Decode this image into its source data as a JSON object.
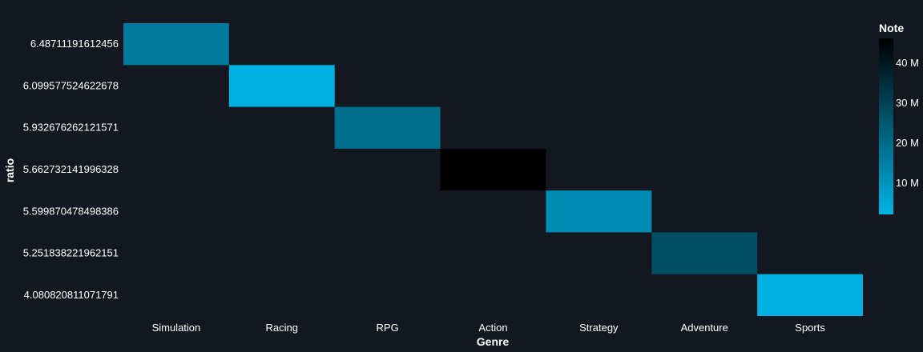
{
  "chart_data": {
    "type": "heatmap",
    "title": "",
    "xlabel": "Genre",
    "ylabel": "ratio",
    "x_categories": [
      "Simulation",
      "Racing",
      "RPG",
      "Action",
      "Strategy",
      "Adventure",
      "Sports"
    ],
    "y_categories": [
      "6.48711191612456",
      "6.099577524622678",
      "5.932676262121571",
      "5.662732141996328",
      "5.599870478498386",
      "5.251838221962151",
      "4.080820811071791"
    ],
    "cells": [
      {
        "x": "Simulation",
        "y": "6.48711191612456",
        "value": 16000000
      },
      {
        "x": "Racing",
        "y": "6.099577524622678",
        "value": 3000000
      },
      {
        "x": "RPG",
        "y": "5.932676262121571",
        "value": 19000000
      },
      {
        "x": "Action",
        "y": "5.662732141996328",
        "value": 46000000
      },
      {
        "x": "Strategy",
        "y": "5.599870478498386",
        "value": 12000000
      },
      {
        "x": "Adventure",
        "y": "5.251838221962151",
        "value": 27000000
      },
      {
        "x": "Sports",
        "y": "4.080820811071791",
        "value": 3000000
      }
    ],
    "colorbar": {
      "title": "Note",
      "range": [
        2000000,
        46000000
      ],
      "ticks": [
        10000000,
        20000000,
        30000000,
        40000000
      ],
      "tick_labels": [
        "10 M",
        "20 M",
        "30 M",
        "40 M"
      ],
      "color_low": "#00b4e6",
      "color_high": "#000000",
      "placement": "right"
    },
    "grid": false,
    "colors": {
      "background": "#131820",
      "text": "#ffffff"
    }
  }
}
